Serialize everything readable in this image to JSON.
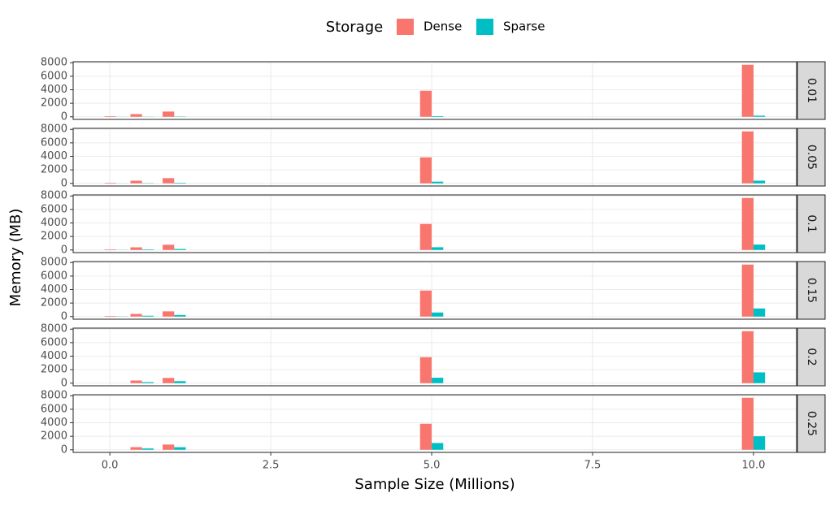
{
  "chart_data": {
    "type": "bar",
    "legend_title": "Storage",
    "xlabel": "Sample Size (Millions)",
    "ylabel": "Memory (MB)",
    "x": [
      0.1,
      0.5,
      1,
      5,
      10
    ],
    "bar_width": 0.36,
    "xlim": [
      -0.57,
      10.67
    ],
    "xticks": [
      {
        "value": 0,
        "label": "0.0"
      },
      2.5,
      {
        "value": 5,
        "label": "5.0"
      },
      7.5,
      {
        "value": 10,
        "label": "10.0"
      }
    ],
    "ylim": [
      -390,
      8150
    ],
    "yticks": [
      0,
      2000,
      4000,
      6000,
      8000
    ],
    "grid": true,
    "legend_position": "top",
    "series": [
      {
        "name": "Dense",
        "color": "#f8766d"
      },
      {
        "name": "Sparse",
        "color": "#00bfc4"
      }
    ],
    "facets": [
      {
        "label": "0.01",
        "values": [
          [
            80,
            390,
            770,
            3850,
            7700
          ],
          [
            10,
            20,
            40,
            90,
            160
          ]
        ]
      },
      {
        "label": "0.05",
        "values": [
          [
            80,
            390,
            770,
            3850,
            7700
          ],
          [
            15,
            40,
            80,
            250,
            400
          ]
        ]
      },
      {
        "label": "0.1",
        "values": [
          [
            80,
            390,
            770,
            3850,
            7700
          ],
          [
            20,
            80,
            150,
            400,
            800
          ]
        ]
      },
      {
        "label": "0.15",
        "values": [
          [
            80,
            390,
            770,
            3850,
            7700
          ],
          [
            30,
            120,
            230,
            600,
            1200
          ]
        ]
      },
      {
        "label": "0.2",
        "values": [
          [
            null,
            390,
            770,
            3850,
            7700
          ],
          [
            null,
            150,
            300,
            800,
            1600
          ]
        ]
      },
      {
        "label": "0.25",
        "values": [
          [
            null,
            390,
            770,
            3850,
            7700
          ],
          [
            null,
            190,
            380,
            1000,
            2000
          ]
        ]
      }
    ]
  }
}
